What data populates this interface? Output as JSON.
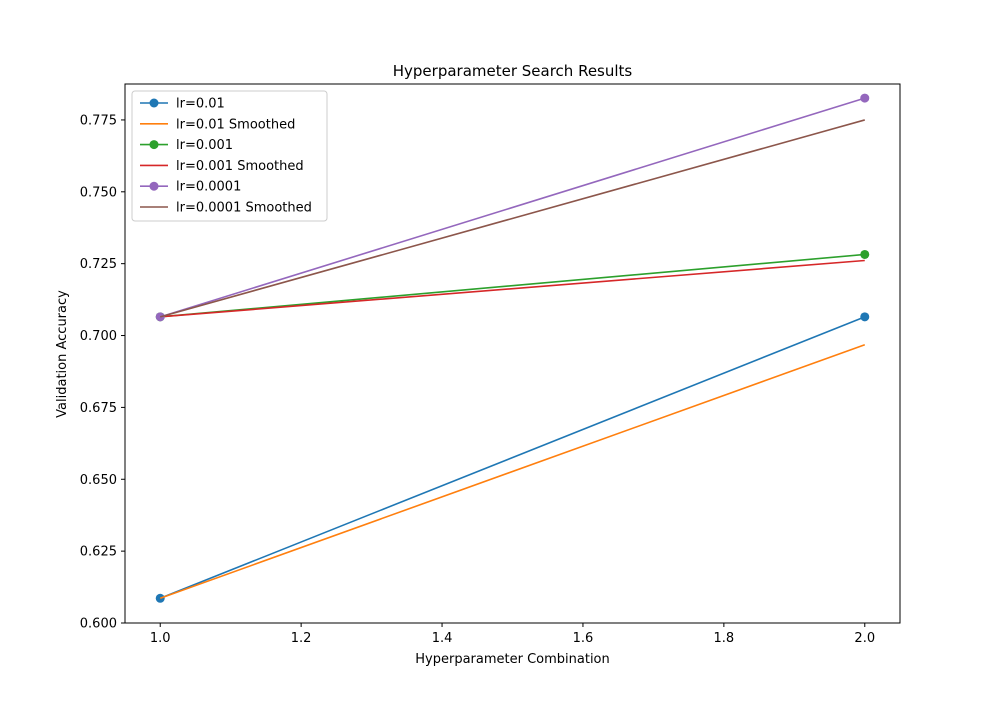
{
  "chart_data": {
    "type": "line",
    "title": "Hyperparameter Search Results",
    "xlabel": "Hyperparameter Combination",
    "ylabel": "Validation Accuracy",
    "xlim": [
      0.95,
      2.05
    ],
    "ylim": [
      0.6,
      0.7875
    ],
    "xticks": [
      1.0,
      1.2,
      1.4,
      1.6,
      1.8,
      2.0
    ],
    "xtick_labels": [
      "1.0",
      "1.2",
      "1.4",
      "1.6",
      "1.8",
      "2.0"
    ],
    "yticks": [
      0.6,
      0.625,
      0.65,
      0.675,
      0.7,
      0.725,
      0.75,
      0.775
    ],
    "ytick_labels": [
      "0.600",
      "0.625",
      "0.650",
      "0.675",
      "0.700",
      "0.725",
      "0.750",
      "0.775"
    ],
    "grid": false,
    "legend_position": "top-left",
    "series": [
      {
        "name": "lr=0.01",
        "color": "#1f77b4",
        "markers": true,
        "x": [
          1.0,
          2.0
        ],
        "y": [
          0.6086,
          0.7065
        ]
      },
      {
        "name": "lr=0.01 Smoothed",
        "color": "#ff7f0e",
        "markers": false,
        "x": [
          1.0,
          2.0
        ],
        "y": [
          0.6086,
          0.6968
        ]
      },
      {
        "name": "lr=0.001",
        "color": "#2ca02c",
        "markers": true,
        "x": [
          1.0,
          2.0
        ],
        "y": [
          0.7065,
          0.7282
        ]
      },
      {
        "name": "lr=0.001 Smoothed",
        "color": "#d62728",
        "markers": false,
        "x": [
          1.0,
          2.0
        ],
        "y": [
          0.7065,
          0.7261
        ]
      },
      {
        "name": "lr=0.0001",
        "color": "#9467bd",
        "markers": true,
        "x": [
          1.0,
          2.0
        ],
        "y": [
          0.7065,
          0.7826
        ]
      },
      {
        "name": "lr=0.0001 Smoothed",
        "color": "#8c564b",
        "markers": false,
        "x": [
          1.0,
          2.0
        ],
        "y": [
          0.7065,
          0.775
        ]
      }
    ]
  }
}
